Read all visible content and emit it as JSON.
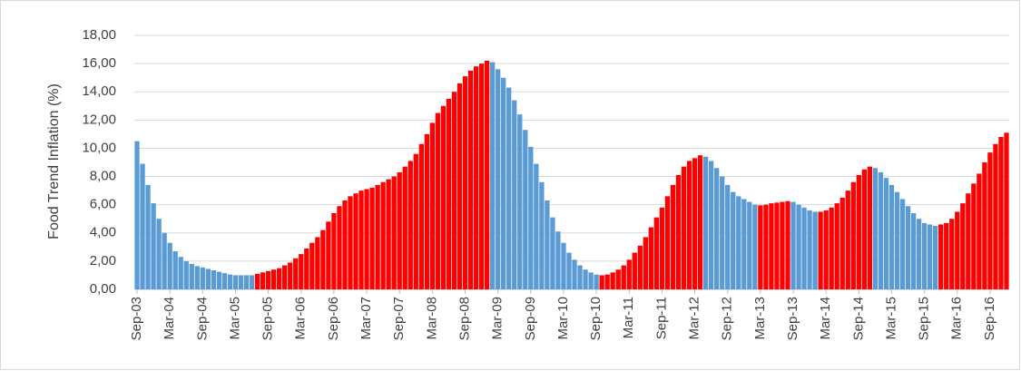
{
  "chart_data": {
    "type": "bar",
    "y_label": "Food Trend Inflation (%)",
    "categories": [
      "Sep-03",
      null,
      null,
      null,
      null,
      null,
      "Mar-04",
      null,
      null,
      null,
      null,
      null,
      "Sep-04",
      null,
      null,
      null,
      null,
      null,
      "Mar-05",
      null,
      null,
      null,
      null,
      null,
      "Sep-05",
      null,
      null,
      null,
      null,
      null,
      "Mar-06",
      null,
      null,
      null,
      null,
      null,
      "Sep-06",
      null,
      null,
      null,
      null,
      null,
      "Mar-07",
      null,
      null,
      null,
      null,
      null,
      "Sep-07",
      null,
      null,
      null,
      null,
      null,
      "Mar-08",
      null,
      null,
      null,
      null,
      null,
      "Sep-08",
      null,
      null,
      null,
      null,
      null,
      "Mar-09",
      null,
      null,
      null,
      null,
      null,
      "Sep-09",
      null,
      null,
      null,
      null,
      null,
      "Mar-10",
      null,
      null,
      null,
      null,
      null,
      "Sep-10",
      null,
      null,
      null,
      null,
      null,
      "Mar-11",
      null,
      null,
      null,
      null,
      null,
      "Sep-11",
      null,
      null,
      null,
      null,
      null,
      "Mar-12",
      null,
      null,
      null,
      null,
      null,
      "Sep-12",
      null,
      null,
      null,
      null,
      null,
      "Mar-13",
      null,
      null,
      null,
      null,
      null,
      "Sep-13",
      null,
      null,
      null,
      null,
      null,
      "Mar-14",
      null,
      null,
      null,
      null,
      null,
      "Sep-14",
      null,
      null,
      null,
      null,
      null,
      "Mar-15",
      null,
      null,
      null,
      null,
      null,
      "Sep-15",
      null,
      null,
      null,
      null,
      null,
      "Mar-16",
      null,
      null,
      null,
      null,
      null,
      "Sep-16",
      null,
      null,
      null
    ],
    "values": [
      10.5,
      8.9,
      7.4,
      6.1,
      5.0,
      4.0,
      3.3,
      2.7,
      2.3,
      2.0,
      1.8,
      1.65,
      1.55,
      1.45,
      1.35,
      1.25,
      1.15,
      1.05,
      1.0,
      1.0,
      1.0,
      1.0,
      1.1,
      1.2,
      1.3,
      1.4,
      1.5,
      1.7,
      1.9,
      2.2,
      2.5,
      2.9,
      3.3,
      3.7,
      4.2,
      4.8,
      5.4,
      5.9,
      6.3,
      6.6,
      6.8,
      7.0,
      7.1,
      7.2,
      7.4,
      7.6,
      7.8,
      8.0,
      8.3,
      8.7,
      9.1,
      9.6,
      10.3,
      11.0,
      11.8,
      12.5,
      13.0,
      13.5,
      14.0,
      14.6,
      15.1,
      15.5,
      15.8,
      16.0,
      16.2,
      16.1,
      15.6,
      15.0,
      14.3,
      13.4,
      12.4,
      11.3,
      10.1,
      8.9,
      7.6,
      6.3,
      5.1,
      4.1,
      3.3,
      2.6,
      2.1,
      1.7,
      1.4,
      1.2,
      1.05,
      1.0,
      1.05,
      1.2,
      1.4,
      1.7,
      2.1,
      2.6,
      3.1,
      3.7,
      4.4,
      5.1,
      5.8,
      6.6,
      7.4,
      8.1,
      8.7,
      9.1,
      9.3,
      9.5,
      9.4,
      9.1,
      8.6,
      8.0,
      7.4,
      6.9,
      6.6,
      6.4,
      6.2,
      6.0,
      5.95,
      6.0,
      6.1,
      6.15,
      6.2,
      6.25,
      6.2,
      6.0,
      5.8,
      5.6,
      5.5,
      5.5,
      5.6,
      5.8,
      6.1,
      6.5,
      7.0,
      7.6,
      8.1,
      8.5,
      8.7,
      8.6,
      8.3,
      7.9,
      7.4,
      6.9,
      6.4,
      5.9,
      5.4,
      5.0,
      4.7,
      4.6,
      4.5,
      4.6,
      4.7,
      5.0,
      5.5,
      6.1,
      6.8,
      7.5,
      8.2,
      9.0,
      9.7,
      10.3,
      10.8,
      11.1
    ],
    "colors": [
      "#5b9bd5",
      "#5b9bd5",
      "#5b9bd5",
      "#5b9bd5",
      "#5b9bd5",
      "#5b9bd5",
      "#5b9bd5",
      "#5b9bd5",
      "#5b9bd5",
      "#5b9bd5",
      "#5b9bd5",
      "#5b9bd5",
      "#5b9bd5",
      "#5b9bd5",
      "#5b9bd5",
      "#5b9bd5",
      "#5b9bd5",
      "#5b9bd5",
      "#5b9bd5",
      "#5b9bd5",
      "#5b9bd5",
      "#5b9bd5",
      "#ff0000",
      "#ff0000",
      "#ff0000",
      "#ff0000",
      "#ff0000",
      "#ff0000",
      "#ff0000",
      "#ff0000",
      "#ff0000",
      "#ff0000",
      "#ff0000",
      "#ff0000",
      "#ff0000",
      "#ff0000",
      "#ff0000",
      "#ff0000",
      "#ff0000",
      "#ff0000",
      "#ff0000",
      "#ff0000",
      "#ff0000",
      "#ff0000",
      "#ff0000",
      "#ff0000",
      "#ff0000",
      "#ff0000",
      "#ff0000",
      "#ff0000",
      "#ff0000",
      "#ff0000",
      "#ff0000",
      "#ff0000",
      "#ff0000",
      "#ff0000",
      "#ff0000",
      "#ff0000",
      "#ff0000",
      "#ff0000",
      "#ff0000",
      "#ff0000",
      "#ff0000",
      "#ff0000",
      "#ff0000",
      "#5b9bd5",
      "#5b9bd5",
      "#5b9bd5",
      "#5b9bd5",
      "#5b9bd5",
      "#5b9bd5",
      "#5b9bd5",
      "#5b9bd5",
      "#5b9bd5",
      "#5b9bd5",
      "#5b9bd5",
      "#5b9bd5",
      "#5b9bd5",
      "#5b9bd5",
      "#5b9bd5",
      "#5b9bd5",
      "#5b9bd5",
      "#5b9bd5",
      "#5b9bd5",
      "#5b9bd5",
      "#ff0000",
      "#ff0000",
      "#ff0000",
      "#ff0000",
      "#ff0000",
      "#ff0000",
      "#ff0000",
      "#ff0000",
      "#ff0000",
      "#ff0000",
      "#ff0000",
      "#ff0000",
      "#ff0000",
      "#ff0000",
      "#ff0000",
      "#ff0000",
      "#ff0000",
      "#ff0000",
      "#ff0000",
      "#5b9bd5",
      "#5b9bd5",
      "#5b9bd5",
      "#5b9bd5",
      "#5b9bd5",
      "#5b9bd5",
      "#5b9bd5",
      "#5b9bd5",
      "#5b9bd5",
      "#5b9bd5",
      "#ff0000",
      "#ff0000",
      "#ff0000",
      "#ff0000",
      "#ff0000",
      "#ff0000",
      "#5b9bd5",
      "#5b9bd5",
      "#5b9bd5",
      "#5b9bd5",
      "#5b9bd5",
      "#ff0000",
      "#ff0000",
      "#ff0000",
      "#ff0000",
      "#ff0000",
      "#ff0000",
      "#ff0000",
      "#ff0000",
      "#ff0000",
      "#ff0000",
      "#5b9bd5",
      "#5b9bd5",
      "#5b9bd5",
      "#5b9bd5",
      "#5b9bd5",
      "#5b9bd5",
      "#5b9bd5",
      "#5b9bd5",
      "#5b9bd5",
      "#5b9bd5",
      "#5b9bd5",
      "#5b9bd5",
      "#ff0000",
      "#ff0000",
      "#ff0000",
      "#ff0000",
      "#ff0000",
      "#ff0000",
      "#ff0000",
      "#ff0000",
      "#ff0000",
      "#ff0000",
      "#ff0000",
      "#ff0000",
      "#ff0000"
    ],
    "ylim": [
      0,
      18
    ],
    "yticks": [
      {
        "value": 0,
        "label": "0,00"
      },
      {
        "value": 2,
        "label": "2,00"
      },
      {
        "value": 4,
        "label": "4,00"
      },
      {
        "value": 6,
        "label": "6,00"
      },
      {
        "value": 8,
        "label": "8,00"
      },
      {
        "value": 10,
        "label": "10,00"
      },
      {
        "value": 12,
        "label": "12,00"
      },
      {
        "value": 14,
        "label": "14,00"
      },
      {
        "value": 16,
        "label": "16,00"
      },
      {
        "value": 18,
        "label": "18,00"
      }
    ],
    "grid": true
  }
}
